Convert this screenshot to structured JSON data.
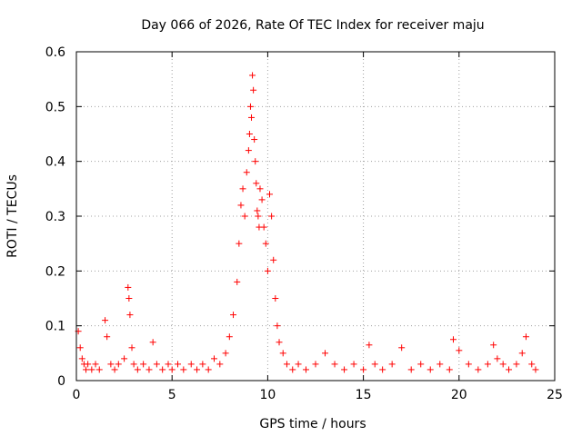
{
  "chart_data": {
    "type": "scatter",
    "title": "Day 066 of 2026, Rate Of TEC Index for receiver maju",
    "xlabel": "GPS time / hours",
    "ylabel": "ROTI / TECUs",
    "xlim": [
      0,
      25
    ],
    "ylim": [
      0,
      0.6
    ],
    "xticks": [
      0,
      5,
      10,
      15,
      20,
      25
    ],
    "yticks": [
      0,
      0.1,
      0.2,
      0.3,
      0.4,
      0.5,
      0.6
    ],
    "xtick_labels": [
      "0",
      "5",
      "10",
      "15",
      "20",
      "25"
    ],
    "ytick_labels": [
      "0",
      "0.1",
      "0.2",
      "0.3",
      "0.4",
      "0.5",
      "0.6"
    ],
    "grid": true,
    "marker": "+",
    "color": "#ff0000",
    "series": [
      {
        "name": "ROTI",
        "x": [
          0.1,
          0.2,
          0.3,
          0.4,
          0.5,
          0.6,
          0.8,
          1.0,
          1.2,
          1.5,
          1.6,
          1.8,
          2.0,
          2.2,
          2.5,
          2.7,
          2.75,
          2.8,
          2.9,
          3.0,
          3.2,
          3.5,
          3.8,
          4.0,
          4.2,
          4.5,
          4.8,
          5.0,
          5.3,
          5.6,
          6.0,
          6.3,
          6.6,
          6.9,
          7.2,
          7.5,
          7.8,
          8.0,
          8.2,
          8.4,
          8.5,
          8.6,
          8.7,
          8.8,
          8.9,
          9.0,
          9.05,
          9.1,
          9.15,
          9.2,
          9.25,
          9.3,
          9.35,
          9.4,
          9.45,
          9.5,
          9.55,
          9.6,
          9.7,
          9.8,
          9.9,
          10.0,
          10.1,
          10.2,
          10.3,
          10.4,
          10.5,
          10.6,
          10.8,
          11.0,
          11.3,
          11.6,
          12.0,
          12.5,
          13.0,
          13.5,
          14.0,
          14.5,
          15.0,
          15.3,
          15.6,
          16.0,
          16.5,
          17.0,
          17.5,
          18.0,
          18.5,
          19.0,
          19.5,
          19.7,
          20.0,
          20.5,
          21.0,
          21.5,
          21.8,
          22.0,
          22.3,
          22.6,
          23.0,
          23.3,
          23.5,
          23.8,
          24.0
        ],
        "values": [
          0.09,
          0.06,
          0.04,
          0.03,
          0.02,
          0.03,
          0.02,
          0.03,
          0.02,
          0.11,
          0.08,
          0.03,
          0.02,
          0.03,
          0.04,
          0.17,
          0.15,
          0.12,
          0.06,
          0.03,
          0.02,
          0.03,
          0.02,
          0.07,
          0.03,
          0.02,
          0.03,
          0.02,
          0.03,
          0.02,
          0.03,
          0.02,
          0.03,
          0.02,
          0.04,
          0.03,
          0.05,
          0.08,
          0.12,
          0.18,
          0.25,
          0.32,
          0.35,
          0.3,
          0.38,
          0.42,
          0.45,
          0.5,
          0.48,
          0.557,
          0.53,
          0.44,
          0.4,
          0.36,
          0.31,
          0.3,
          0.28,
          0.35,
          0.33,
          0.28,
          0.25,
          0.2,
          0.34,
          0.3,
          0.22,
          0.15,
          0.1,
          0.07,
          0.05,
          0.03,
          0.02,
          0.03,
          0.02,
          0.03,
          0.05,
          0.03,
          0.02,
          0.03,
          0.02,
          0.065,
          0.03,
          0.02,
          0.03,
          0.06,
          0.02,
          0.03,
          0.02,
          0.03,
          0.02,
          0.075,
          0.055,
          0.03,
          0.02,
          0.03,
          0.065,
          0.04,
          0.03,
          0.02,
          0.03,
          0.05,
          0.08,
          0.03,
          0.02
        ]
      }
    ]
  }
}
